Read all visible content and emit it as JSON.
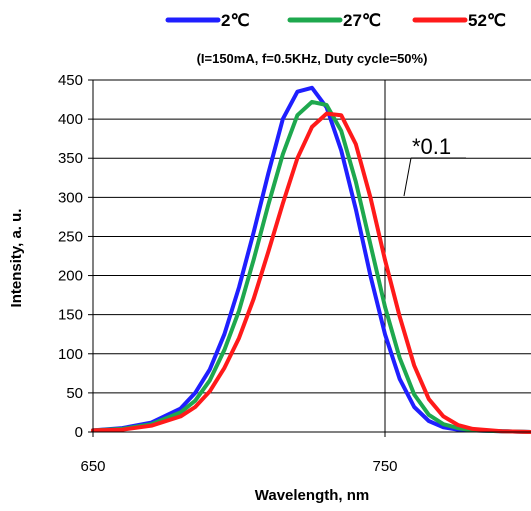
{
  "chart_data": {
    "type": "line",
    "title": "",
    "subtitle": "(I=150mA, f=0.5KHz, Duty cycle=50%)",
    "xlabel": "Wavelength,  nm",
    "ylabel": "Intensity, a. u.",
    "xlim": [
      650,
      800
    ],
    "ylim": [
      0,
      450
    ],
    "x_ticks": [
      "650",
      "750"
    ],
    "y_ticks": [
      "0",
      "50",
      "100",
      "150",
      "200",
      "250",
      "300",
      "350",
      "400",
      "450"
    ],
    "grid": "horizontal",
    "legend_position": "top",
    "annotation": "*0.1",
    "x": [
      650,
      660,
      670,
      680,
      685,
      690,
      695,
      700,
      705,
      710,
      715,
      720,
      725,
      730,
      735,
      740,
      745,
      750,
      755,
      760,
      765,
      770,
      775,
      780,
      790,
      800
    ],
    "series": [
      {
        "name": "2℃",
        "color": "#1f1fff",
        "values": [
          2,
          5,
          12,
          30,
          50,
          80,
          125,
          185,
          255,
          330,
          400,
          435,
          440,
          415,
          360,
          285,
          200,
          125,
          68,
          32,
          14,
          6,
          3,
          2,
          1,
          0
        ]
      },
      {
        "name": "27℃",
        "color": "#1ea84e",
        "values": [
          2,
          4,
          10,
          25,
          40,
          66,
          105,
          155,
          220,
          290,
          355,
          405,
          422,
          418,
          385,
          320,
          240,
          160,
          95,
          48,
          22,
          10,
          5,
          2,
          1,
          0
        ]
      },
      {
        "name": "52℃",
        "color": "#ff1a1a",
        "values": [
          2,
          3,
          8,
          20,
          32,
          52,
          82,
          120,
          170,
          230,
          292,
          350,
          390,
          407,
          405,
          368,
          300,
          220,
          148,
          85,
          42,
          20,
          9,
          4,
          1,
          0
        ]
      }
    ]
  }
}
